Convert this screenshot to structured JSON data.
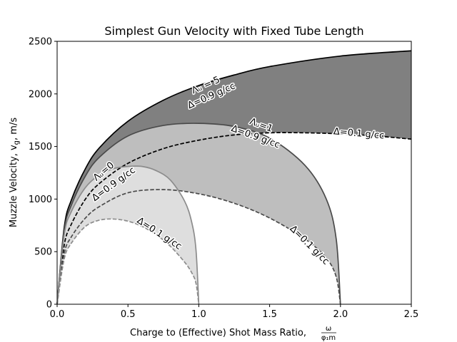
{
  "chart_data": {
    "type": "area",
    "title": "Simplest Gun Velocity with Fixed Tube Length",
    "xlabel": "Charge to (Effective) Shot Mass Ratio,",
    "xlabel_fraction": {
      "numerator": "ω",
      "denominator": "φ₁m"
    },
    "ylabel_prefix": "Muzzle Velocity, v",
    "ylabel_subscript": "g",
    "ylabel_suffix": ", m/s",
    "xlim": [
      0,
      2.5
    ],
    "ylim": [
      0,
      2500
    ],
    "xticks": [
      "0.0",
      "0.5",
      "1.0",
      "1.5",
      "2.0",
      "2.5"
    ],
    "yticks": [
      "0",
      "500",
      "1000",
      "1500",
      "2000",
      "2500"
    ],
    "grid": false,
    "legend": "none",
    "colors": {
      "band_5": "#808080",
      "band_1": "#bebebe",
      "band_0": "#dedede",
      "line_5": "#000000",
      "line_1": "#4a4a4a",
      "line_0": "#8c8c8c"
    },
    "series": [
      {
        "label": "Λᵤ=5, Δ=0.9 g/cc",
        "style": "solid",
        "color": "#000000",
        "x": [
          0,
          0.05,
          0.1,
          0.2,
          0.3,
          0.5,
          0.75,
          1.0,
          1.25,
          1.5,
          2.0,
          2.5
        ],
        "y": [
          0,
          730,
          990,
          1290,
          1490,
          1740,
          1940,
          2080,
          2180,
          2260,
          2360,
          2410
        ]
      },
      {
        "label": "Λᵤ=5, Δ=0.1 g/cc",
        "style": "dashed",
        "color": "#000000",
        "x": [
          0,
          0.05,
          0.1,
          0.2,
          0.3,
          0.5,
          0.75,
          1.0,
          1.25,
          1.5,
          1.75,
          2.0,
          2.25,
          2.5
        ],
        "y": [
          0,
          560,
          760,
          1000,
          1150,
          1340,
          1480,
          1560,
          1610,
          1630,
          1630,
          1620,
          1600,
          1570
        ]
      },
      {
        "label": "Λᵤ=1, Δ=0.9 g/cc",
        "style": "solid",
        "color": "#4a4a4a",
        "x": [
          0,
          0.05,
          0.1,
          0.2,
          0.3,
          0.5,
          0.75,
          1.0,
          1.25,
          1.5,
          1.75,
          1.9,
          1.97,
          2.0
        ],
        "y": [
          0,
          700,
          940,
          1220,
          1400,
          1600,
          1700,
          1720,
          1690,
          1580,
          1320,
          1000,
          620,
          0
        ]
      },
      {
        "label": "Λᵤ=1, Δ=0.1 g/cc",
        "style": "dashed",
        "color": "#4a4a4a",
        "x": [
          0,
          0.05,
          0.1,
          0.2,
          0.3,
          0.5,
          0.75,
          1.0,
          1.25,
          1.5,
          1.75,
          1.9,
          1.97,
          2.0
        ],
        "y": [
          0,
          480,
          640,
          820,
          930,
          1060,
          1090,
          1050,
          960,
          820,
          620,
          440,
          260,
          0
        ]
      },
      {
        "label": "Λᵤ=0, Δ=0.9 g/cc",
        "style": "solid",
        "color": "#8c8c8c",
        "x": [
          0,
          0.05,
          0.1,
          0.2,
          0.3,
          0.4,
          0.5,
          0.6,
          0.7,
          0.8,
          0.9,
          0.95,
          0.98,
          1.0
        ],
        "y": [
          0,
          660,
          880,
          1110,
          1230,
          1290,
          1310,
          1310,
          1270,
          1180,
          980,
          780,
          520,
          0
        ]
      },
      {
        "label": "Λᵤ=0, Δ=0.1 g/cc",
        "style": "dashed",
        "color": "#8c8c8c",
        "x": [
          0,
          0.05,
          0.1,
          0.2,
          0.3,
          0.4,
          0.5,
          0.6,
          0.7,
          0.8,
          0.9,
          0.95,
          0.98,
          1.0
        ],
        "y": [
          0,
          430,
          580,
          740,
          800,
          810,
          790,
          740,
          660,
          550,
          400,
          300,
          200,
          0
        ]
      }
    ],
    "annotations": [
      {
        "text": "Λᵤ = 5",
        "x": 1.05,
        "y": 2080,
        "angle": -24
      },
      {
        "text": "Δ=0.9 g/cc",
        "x": 1.09,
        "y": 1980,
        "angle": -24
      },
      {
        "text": "Λᵤ=1",
        "x": 1.44,
        "y": 1700,
        "angle": 20
      },
      {
        "text": "Δ=0.9 g/cc",
        "x": 1.4,
        "y": 1590,
        "angle": 20
      },
      {
        "text": "Δ=0.1 g/cc",
        "x": 2.13,
        "y": 1620,
        "angle": 5
      },
      {
        "text": "Λᵤ=0",
        "x": 0.33,
        "y": 1260,
        "angle": -40
      },
      {
        "text": "Δ=0.9 g/cc",
        "x": 0.4,
        "y": 1140,
        "angle": -36
      },
      {
        "text": "Δ=0.1 g/cc",
        "x": 0.72,
        "y": 670,
        "angle": 33
      },
      {
        "text": "Δ=0.1 g/cc",
        "x": 1.78,
        "y": 560,
        "angle": 45
      }
    ]
  }
}
